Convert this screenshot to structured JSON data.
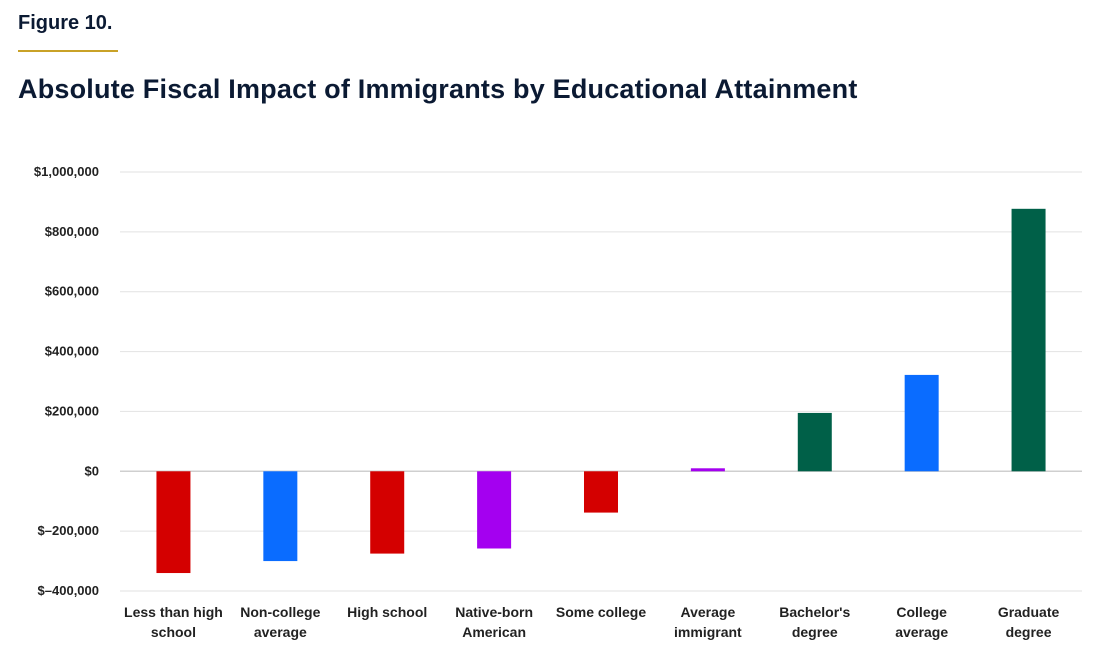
{
  "figure_label": "Figure 10.",
  "chart_data": {
    "type": "bar",
    "title": "Absolute Fiscal Impact of Immigrants by Educational Attainment",
    "xlabel": "",
    "ylabel": "",
    "ylim": [
      -400000,
      1000000
    ],
    "yticks": [
      -400000,
      -200000,
      0,
      200000,
      400000,
      600000,
      800000,
      1000000
    ],
    "ytick_labels": [
      "$–400,000",
      "$–200,000",
      "$0",
      "$200,000",
      "$400,000",
      "$600,000",
      "$800,000",
      "$1,000,000"
    ],
    "grid": true,
    "categories": [
      [
        "Less than high",
        "school"
      ],
      [
        "Non-college",
        "average"
      ],
      [
        "High school"
      ],
      [
        "Native-born",
        "American"
      ],
      [
        "Some college"
      ],
      [
        "Average",
        "immigrant"
      ],
      [
        "Bachelor's",
        "degree"
      ],
      [
        "College",
        "average"
      ],
      [
        "Graduate",
        "degree"
      ]
    ],
    "values": [
      -340000,
      -300000,
      -275000,
      -258000,
      -138000,
      10000,
      195000,
      322000,
      877000
    ],
    "colors": [
      "#d40000",
      "#0a6cff",
      "#d40000",
      "#a400f0",
      "#d40000",
      "#a400f0",
      "#006048",
      "#0a6cff",
      "#006048"
    ]
  }
}
